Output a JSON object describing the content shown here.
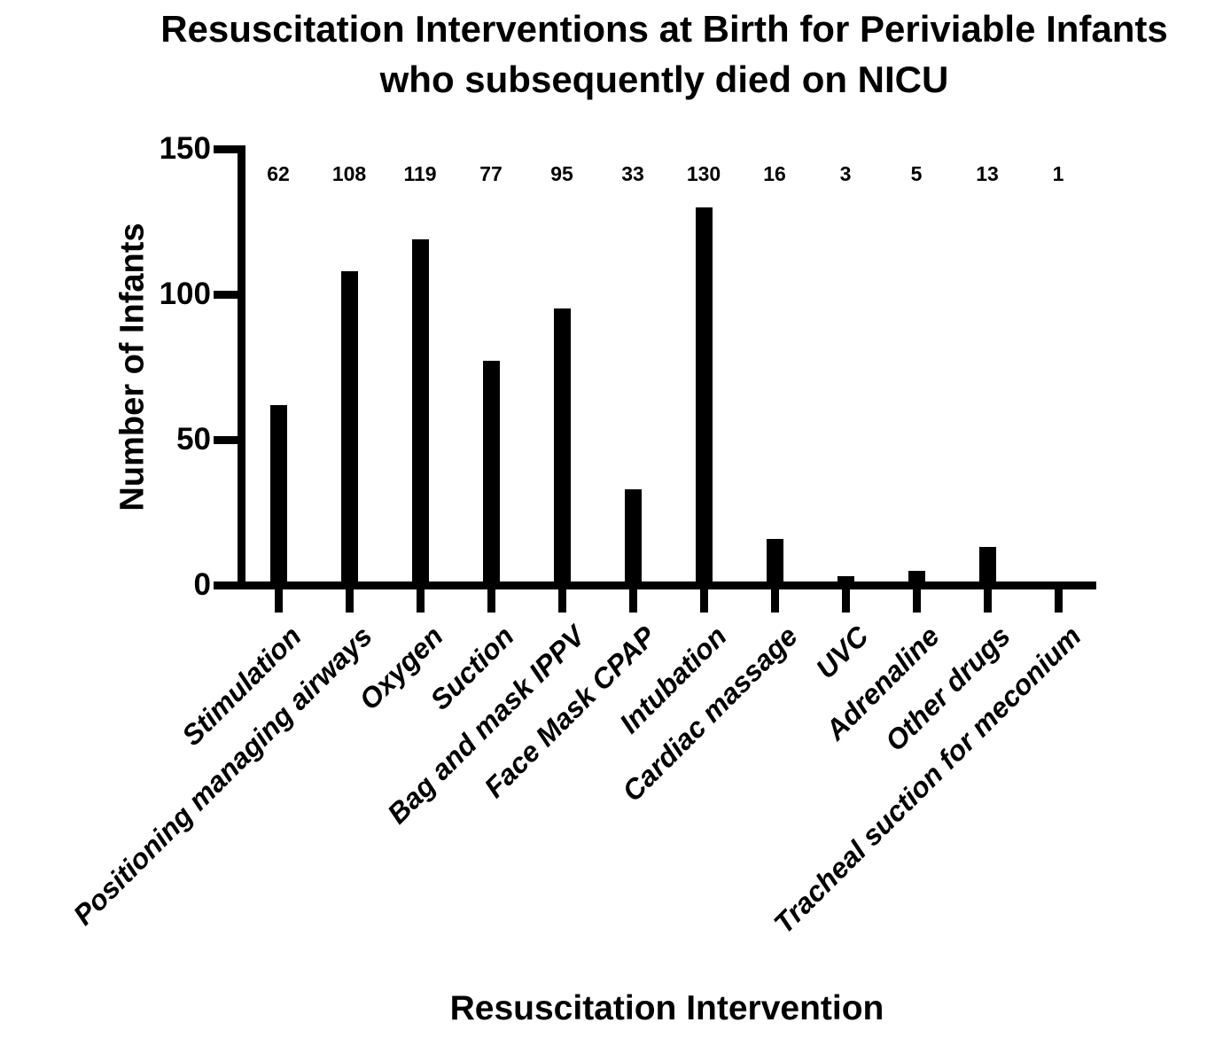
{
  "figure": {
    "title_lines": [
      "Resuscitation Interventions at Birth for Periviable Infants",
      "who subsequently died on NICU"
    ],
    "x_axis_title": "Resuscitation Intervention",
    "y_axis_title": "Number of Infants"
  },
  "chart_data": {
    "type": "bar",
    "title": "Resuscitation Interventions at Birth for Periviable Infants who subsequently died on NICU",
    "xlabel": "Resuscitation Intervention",
    "ylabel": "Number of Infants",
    "categories": [
      "Stimulation",
      "Positioning managing airways",
      "Oxygen",
      "Suction",
      "Bag and mask IPPV",
      "Face Mask CPAP",
      "Intubation",
      "Cardiac massage",
      "UVC",
      "Adrenaline",
      "Other drugs",
      "Tracheal suction for meconium"
    ],
    "values": [
      62,
      108,
      119,
      77,
      95,
      33,
      130,
      16,
      3,
      5,
      13,
      1
    ],
    "value_labels_shown": true,
    "yticks": [
      0,
      50,
      100,
      150
    ],
    "ylim": [
      0,
      150
    ],
    "bar_color": "#000000",
    "axis_color": "#000000",
    "text_color": "#000000",
    "background": "#ffffff",
    "grid": false,
    "legend": null
  }
}
